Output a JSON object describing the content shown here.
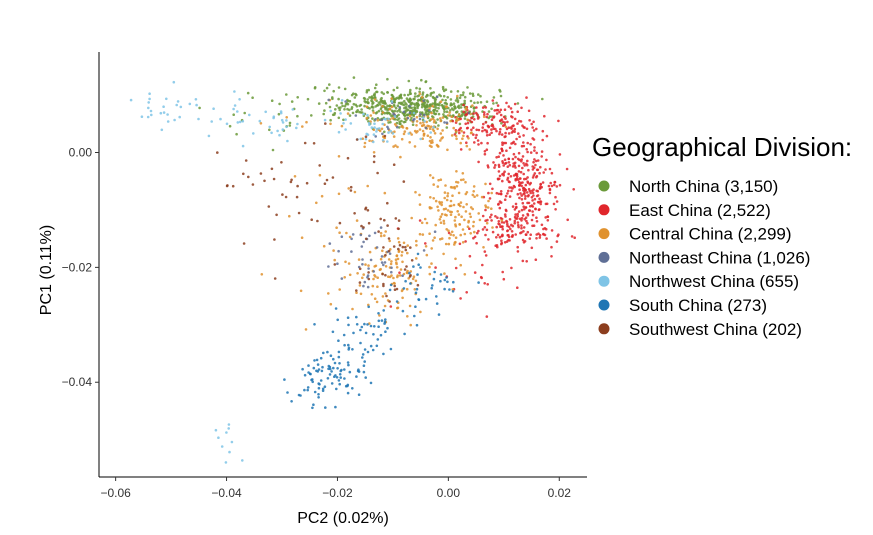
{
  "chart_data": {
    "type": "scatter",
    "xlabel": "PC2 (0.02%)",
    "ylabel": "PC1 (0.11%)",
    "xlim": [
      -0.063,
      0.025
    ],
    "ylim": [
      -0.0565,
      0.0175
    ],
    "x_ticks": [
      -0.06,
      -0.04,
      -0.02,
      0.0,
      0.02
    ],
    "x_tick_labels": [
      "−0.06",
      "−0.04",
      "−0.02",
      "0.00",
      "0.02"
    ],
    "y_ticks": [
      0.0,
      -0.02,
      -0.04
    ],
    "y_tick_labels": [
      "0.00",
      "−0.02",
      "−0.04"
    ],
    "grid": false,
    "legend": {
      "title": "Geographical Division:",
      "position": "right"
    },
    "series": [
      {
        "name": "North China (3,150)",
        "color": "#6b9a3a",
        "clusters": [
          {
            "cx": -0.004,
            "cy": 0.008,
            "sx": 0.0065,
            "sy": 0.0017,
            "n": 420
          },
          {
            "cx": -0.013,
            "cy": 0.0085,
            "sx": 0.006,
            "sy": 0.0015,
            "n": 140
          },
          {
            "cx": -0.03,
            "cy": 0.007,
            "sx": 0.008,
            "sy": 0.002,
            "n": 25
          }
        ]
      },
      {
        "name": "East China (2,522)",
        "color": "#e0262b",
        "clusters": [
          {
            "cx": 0.0085,
            "cy": 0.005,
            "sx": 0.004,
            "sy": 0.0018,
            "n": 150
          },
          {
            "cx": 0.014,
            "cy": -0.006,
            "sx": 0.0033,
            "sy": 0.003,
            "n": 210
          },
          {
            "cx": 0.012,
            "cy": -0.0135,
            "sx": 0.0037,
            "sy": 0.002,
            "n": 140
          },
          {
            "cx": 0.011,
            "cy": -0.001,
            "sx": 0.0025,
            "sy": 0.0025,
            "n": 60
          },
          {
            "cx": 0.002,
            "cy": -0.02,
            "sx": 0.005,
            "sy": 0.004,
            "n": 25
          }
        ]
      },
      {
        "name": "Central China (2,299)",
        "color": "#e0922f",
        "clusters": [
          {
            "cx": -0.004,
            "cy": 0.0045,
            "sx": 0.0055,
            "sy": 0.0022,
            "n": 140
          },
          {
            "cx": 0.001,
            "cy": -0.0105,
            "sx": 0.0035,
            "sy": 0.0035,
            "n": 140
          },
          {
            "cx": -0.01,
            "cy": -0.021,
            "sx": 0.004,
            "sy": 0.0035,
            "n": 120
          },
          {
            "cx": -0.02,
            "cy": -0.012,
            "sx": 0.006,
            "sy": 0.007,
            "n": 25
          },
          {
            "cx": -0.015,
            "cy": 0.006,
            "sx": 0.007,
            "sy": 0.002,
            "n": 20
          }
        ]
      },
      {
        "name": "Northeast China (1,026)",
        "color": "#5f6f96",
        "clusters": [
          {
            "cx": -0.015,
            "cy": -0.018,
            "sx": 0.004,
            "sy": 0.003,
            "n": 40
          },
          {
            "cx": -0.008,
            "cy": 0.006,
            "sx": 0.005,
            "sy": 0.002,
            "n": 30
          }
        ]
      },
      {
        "name": "Northwest China (655)",
        "color": "#7fc4e6",
        "clusters": [
          {
            "cx": -0.052,
            "cy": 0.008,
            "sx": 0.004,
            "sy": 0.0018,
            "n": 25
          },
          {
            "cx": -0.035,
            "cy": 0.0055,
            "sx": 0.006,
            "sy": 0.002,
            "n": 35
          },
          {
            "cx": -0.013,
            "cy": 0.0045,
            "sx": 0.005,
            "sy": 0.0025,
            "n": 45
          },
          {
            "cx": -0.04,
            "cy": -0.05,
            "sx": 0.002,
            "sy": 0.0025,
            "n": 10
          }
        ]
      },
      {
        "name": "South China (273)",
        "color": "#1f76b4",
        "clusters": [
          {
            "cx": -0.021,
            "cy": -0.039,
            "sx": 0.003,
            "sy": 0.002,
            "n": 70
          },
          {
            "cx": -0.015,
            "cy": -0.032,
            "sx": 0.004,
            "sy": 0.003,
            "n": 50
          },
          {
            "cx": -0.005,
            "cy": -0.024,
            "sx": 0.004,
            "sy": 0.003,
            "n": 40
          },
          {
            "cx": -0.027,
            "cy": -0.042,
            "sx": 0.0025,
            "sy": 0.002,
            "n": 15
          }
        ]
      },
      {
        "name": "Southwest China (202)",
        "color": "#8c3e1e",
        "clusters": [
          {
            "cx": -0.02,
            "cy": -0.008,
            "sx": 0.008,
            "sy": 0.006,
            "n": 40
          },
          {
            "cx": -0.012,
            "cy": -0.018,
            "sx": 0.004,
            "sy": 0.005,
            "n": 40
          },
          {
            "cx": -0.032,
            "cy": -0.005,
            "sx": 0.006,
            "sy": 0.004,
            "n": 15
          }
        ]
      }
    ]
  }
}
